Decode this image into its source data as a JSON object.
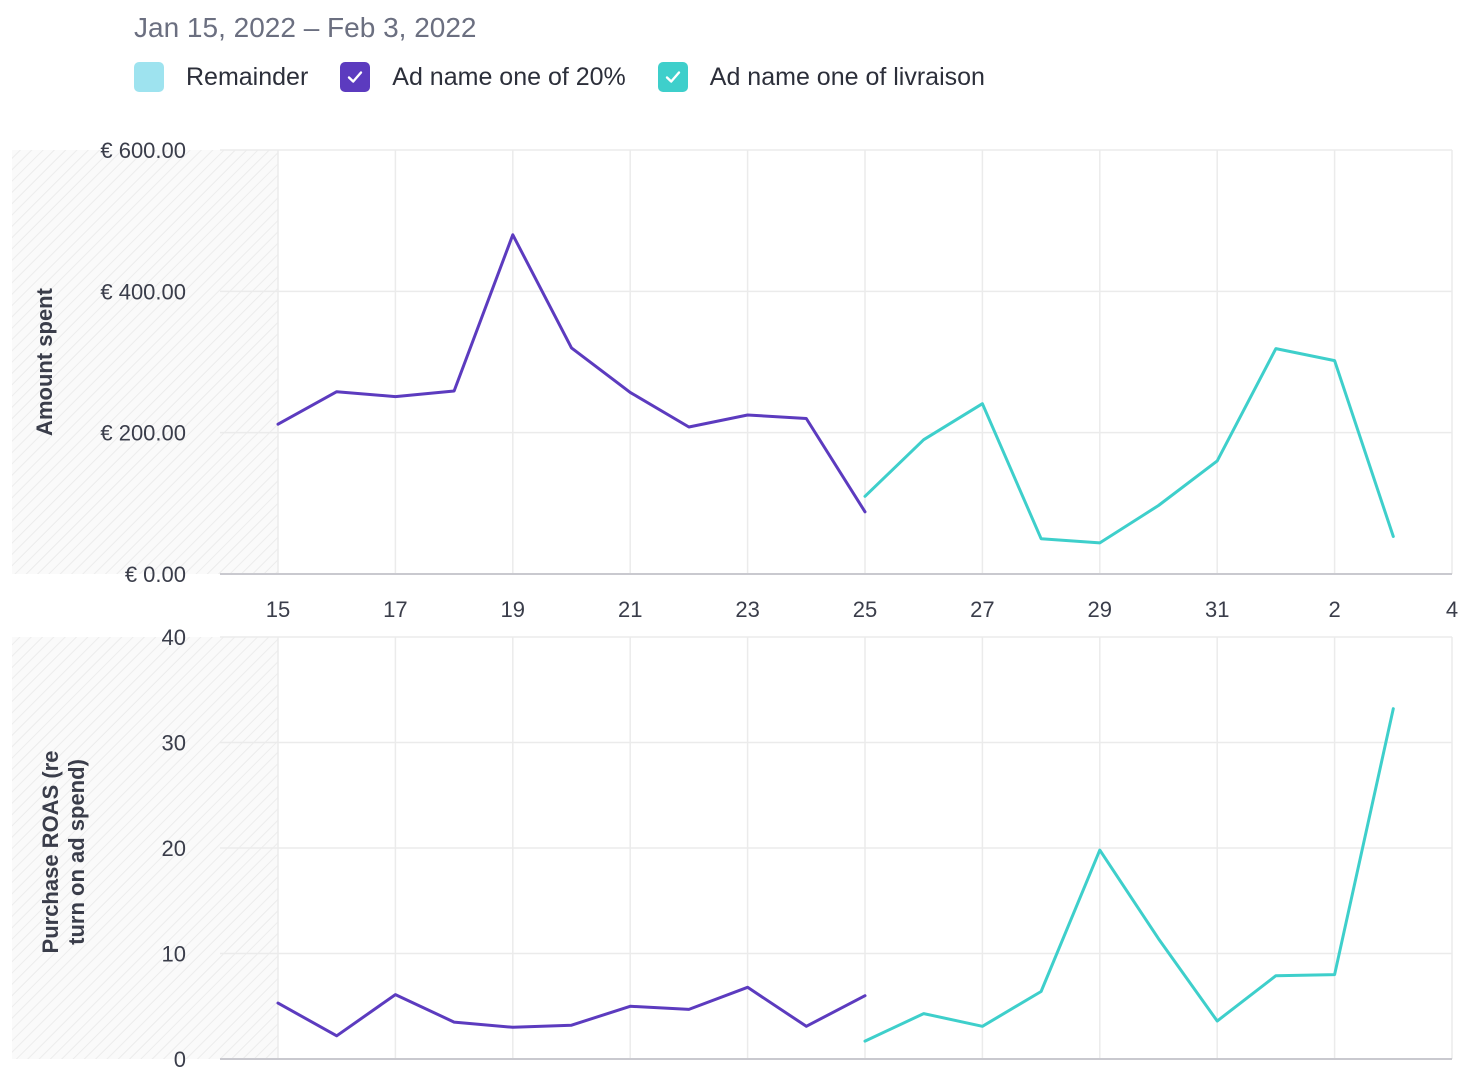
{
  "header": {
    "date_range": "Jan 15, 2022 – Feb 3, 2022"
  },
  "legend": [
    {
      "label": "Remainder",
      "color": "#9ee3ef",
      "checked": false
    },
    {
      "label": "Ad name one of 20%",
      "color": "#5c3bbf",
      "checked": true
    },
    {
      "label": "Ad name one of livraison",
      "color": "#3ecfcb",
      "checked": true
    }
  ],
  "chart_data": [
    {
      "type": "line",
      "ylabel": "Amount spent",
      "ylim": [
        0,
        600
      ],
      "yticks": [
        "€ 0.00",
        "€ 200.00",
        "€ 400.00",
        "€ 600.00"
      ],
      "ytick_values": [
        0,
        200,
        400,
        600
      ],
      "xticks": [
        "15",
        "17",
        "19",
        "21",
        "23",
        "25",
        "27",
        "29",
        "31",
        "2",
        "4"
      ],
      "x_days": [
        "Jan 15",
        "Jan 16",
        "Jan 17",
        "Jan 18",
        "Jan 19",
        "Jan 20",
        "Jan 21",
        "Jan 22",
        "Jan 23",
        "Jan 24",
        "Jan 25",
        "Jan 26",
        "Jan 27",
        "Jan 28",
        "Jan 29",
        "Jan 30",
        "Jan 31",
        "Feb 1",
        "Feb 2",
        "Feb 3"
      ],
      "series": [
        {
          "name": "Ad name one of 20%",
          "color": "#5c3bbf",
          "start_index": 0,
          "values": [
            212,
            258,
            251,
            259,
            480,
            320,
            257,
            208,
            225,
            220,
            88
          ]
        },
        {
          "name": "Ad name one of livraison",
          "color": "#3ecfcb",
          "start_index": 10,
          "values": [
            110,
            190,
            241,
            50,
            44,
            97,
            160,
            319,
            302,
            53
          ]
        }
      ]
    },
    {
      "type": "line",
      "ylabel": "Purchase ROAS (return on ad spend)",
      "ylabel_lines": [
        "Purchase ROAS (re",
        "turn on ad spend)"
      ],
      "ylim": [
        0,
        40
      ],
      "yticks": [
        "0",
        "10",
        "20",
        "30",
        "40"
      ],
      "ytick_values": [
        0,
        10,
        20,
        30,
        40
      ],
      "series": [
        {
          "name": "Ad name one of 20%",
          "color": "#5c3bbf",
          "start_index": 0,
          "values": [
            5.3,
            2.2,
            6.1,
            3.5,
            3.0,
            3.2,
            5.0,
            4.7,
            6.8,
            3.1,
            6.0
          ]
        },
        {
          "name": "Ad name one of livraison",
          "color": "#3ecfcb",
          "start_index": 10,
          "values": [
            1.7,
            4.3,
            3.1,
            6.4,
            19.8,
            11.4,
            3.6,
            7.9,
            8.0,
            33.2
          ]
        }
      ]
    }
  ]
}
